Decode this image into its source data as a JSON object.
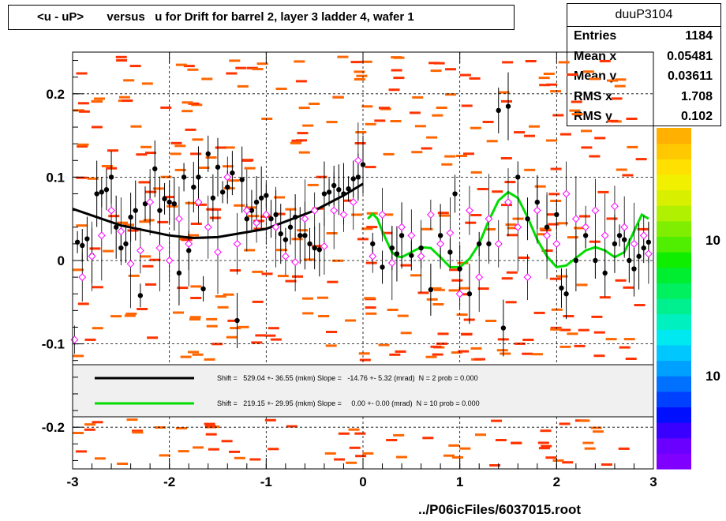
{
  "title": "<u - uP>       versus   u for Drift for barrel 2, layer 3 ladder 4, wafer 1",
  "footer": "../P06icFiles/6037015.root",
  "stats": {
    "name": "duuP3104",
    "rows": [
      {
        "label": "Entries",
        "value": "1184"
      },
      {
        "label": "Mean x",
        "value": "0.05481"
      },
      {
        "label": "Mean y",
        "value": "0.03611"
      },
      {
        "label": "RMS x",
        "value": "1.708"
      },
      {
        "label": "RMS y",
        "value": "0.102"
      }
    ]
  },
  "fit_legend": [
    {
      "text": "Shift =   529.04 +- 36.55 (mkm) Slope =   -14.76 +- 5.32 (mrad)  N = 2 prob = 0.000",
      "color": "#000000"
    },
    {
      "text": "Shift =   219.15 +- 29.95 (mkm) Slope =     0.00 +- 0.00 (mrad)  N = 10 prob = 0.000",
      "color": "#00dd00"
    }
  ],
  "chart_data": {
    "type": "scatter",
    "xlim": [
      -3,
      3
    ],
    "ylim": [
      -0.25,
      0.25
    ],
    "x_ticks": [
      "-3",
      "-2",
      "-1",
      "0",
      "1",
      "2",
      "3"
    ],
    "y_ticks": [
      "0.2",
      "0.1",
      "0",
      "-0.1",
      "-0.2"
    ],
    "color_scale_labels": [
      "10",
      "10"
    ],
    "grid": true,
    "profile_black": [
      [
        -2.95,
        0.022
      ],
      [
        -2.9,
        0.018
      ],
      [
        -2.85,
        0.026
      ],
      [
        -2.8,
        0.006
      ],
      [
        -2.75,
        0.08
      ],
      [
        -2.7,
        0.082
      ],
      [
        -2.65,
        0.085
      ],
      [
        -2.6,
        0.1
      ],
      [
        -2.55,
        0.04
      ],
      [
        -2.5,
        0.015
      ],
      [
        -2.45,
        0.02
      ],
      [
        -2.4,
        0.052
      ],
      [
        -2.35,
        0.06
      ],
      [
        -2.3,
        -0.042
      ],
      [
        -2.25,
        0.068
      ],
      [
        -2.2,
        0.07
      ],
      [
        -2.15,
        0.11
      ],
      [
        -2.1,
        0.06
      ],
      [
        -2.05,
        0.074
      ],
      [
        -2.0,
        0.07
      ],
      [
        -1.95,
        0.068
      ],
      [
        -1.9,
        -0.015
      ],
      [
        -1.85,
        0.1
      ],
      [
        -1.8,
        0.012
      ],
      [
        -1.75,
        0.088
      ],
      [
        -1.7,
        0.1
      ],
      [
        -1.65,
        -0.034
      ],
      [
        -1.6,
        0.128
      ],
      [
        -1.55,
        0.075
      ],
      [
        -1.5,
        0.112
      ],
      [
        -1.45,
        0.082
      ],
      [
        -1.4,
        0.088
      ],
      [
        -1.35,
        0.105
      ],
      [
        -1.3,
        -0.072
      ],
      [
        -1.25,
        0.097
      ],
      [
        -1.2,
        0.05
      ],
      [
        -1.15,
        0.06
      ],
      [
        -1.1,
        0.07
      ],
      [
        -1.05,
        0.075
      ],
      [
        -1.0,
        0.078
      ],
      [
        -0.95,
        0.05
      ],
      [
        -0.9,
        0.055
      ],
      [
        -0.85,
        0.032
      ],
      [
        -0.8,
        0.025
      ],
      [
        -0.75,
        0.04
      ],
      [
        -0.7,
        0.052
      ],
      [
        -0.65,
        0.03
      ],
      [
        -0.6,
        0.03
      ],
      [
        -0.55,
        0.02
      ],
      [
        -0.5,
        0.015
      ],
      [
        -0.45,
        0.013
      ],
      [
        -0.4,
        0.08
      ],
      [
        -0.35,
        0.082
      ],
      [
        -0.3,
        0.09
      ],
      [
        -0.25,
        0.085
      ],
      [
        -0.2,
        0.08
      ],
      [
        -0.15,
        0.086
      ],
      [
        -0.1,
        0.098
      ],
      [
        -0.05,
        0.1
      ],
      [
        0.0,
        0.115
      ],
      [
        0.1,
        0.02
      ],
      [
        0.2,
        -0.008
      ],
      [
        0.3,
        0.015
      ],
      [
        0.35,
        0.008
      ],
      [
        0.4,
        0.03
      ],
      [
        0.5,
        0.006
      ],
      [
        0.6,
        0.015
      ],
      [
        0.7,
        -0.035
      ],
      [
        0.8,
        0.03
      ],
      [
        0.9,
        0.01
      ],
      [
        0.95,
        0.08
      ],
      [
        1.0,
        -0.01
      ],
      [
        1.1,
        -0.04
      ],
      [
        1.2,
        0.02
      ],
      [
        1.3,
        0.02
      ],
      [
        1.4,
        0.18
      ],
      [
        1.45,
        -0.081
      ],
      [
        1.5,
        0.185
      ],
      [
        1.6,
        0.1
      ],
      [
        1.7,
        0.05
      ],
      [
        1.8,
        0.07
      ],
      [
        1.9,
        0.04
      ],
      [
        2.0,
        0.055
      ],
      [
        2.05,
        -0.033
      ],
      [
        2.1,
        -0.04
      ],
      [
        2.2,
        0.0
      ],
      [
        2.3,
        0.03
      ],
      [
        2.4,
        0.0
      ],
      [
        2.5,
        -0.015
      ],
      [
        2.6,
        0.02
      ],
      [
        2.65,
        0.03
      ],
      [
        2.7,
        0.025
      ],
      [
        2.75,
        0.0
      ],
      [
        2.8,
        -0.01
      ],
      [
        2.85,
        0.005
      ],
      [
        2.9,
        0.015
      ],
      [
        2.95,
        0.022
      ]
    ],
    "profile_magenta": [
      [
        -2.98,
        -0.095
      ],
      [
        -2.9,
        -0.02
      ],
      [
        -2.8,
        0.005
      ],
      [
        -2.7,
        0.03
      ],
      [
        -2.6,
        0.06
      ],
      [
        -2.5,
        0.035
      ],
      [
        -2.4,
        -0.004
      ],
      [
        -2.3,
        0.012
      ],
      [
        -2.2,
        0.07
      ],
      [
        -2.1,
        0.015
      ],
      [
        -2.0,
        0.0
      ],
      [
        -1.9,
        0.05
      ],
      [
        -1.8,
        0.02
      ],
      [
        -1.7,
        0.07
      ],
      [
        -1.6,
        0.04
      ],
      [
        -1.5,
        0.01
      ],
      [
        -1.4,
        0.1
      ],
      [
        -1.3,
        0.02
      ],
      [
        -1.2,
        0.06
      ],
      [
        -1.1,
        0.045
      ],
      [
        -1.0,
        0.055
      ],
      [
        -0.9,
        0.04
      ],
      [
        -0.8,
        0.005
      ],
      [
        -0.7,
        -0.002
      ],
      [
        -0.6,
        0.05
      ],
      [
        -0.5,
        0.06
      ],
      [
        -0.4,
        0.017
      ],
      [
        -0.3,
        0.06
      ],
      [
        -0.2,
        0.055
      ],
      [
        -0.1,
        0.07
      ],
      [
        -0.05,
        0.12
      ],
      [
        0.1,
        0.005
      ],
      [
        0.2,
        0.055
      ],
      [
        0.3,
        -0.003
      ],
      [
        0.4,
        0.04
      ],
      [
        0.5,
        0.03
      ],
      [
        0.6,
        0.005
      ],
      [
        0.7,
        0.055
      ],
      [
        0.8,
        0.02
      ],
      [
        0.9,
        0.033
      ],
      [
        1.0,
        -0.04
      ],
      [
        1.1,
        0.06
      ],
      [
        1.2,
        -0.02
      ],
      [
        1.3,
        0.05
      ],
      [
        1.4,
        0.02
      ],
      [
        1.5,
        0.07
      ],
      [
        1.6,
        0.04
      ],
      [
        1.7,
        -0.02
      ],
      [
        1.8,
        0.06
      ],
      [
        1.9,
        0.03
      ],
      [
        2.0,
        0.02
      ],
      [
        2.1,
        0.08
      ],
      [
        2.2,
        0.05
      ],
      [
        2.3,
        0.04
      ],
      [
        2.4,
        0.06
      ],
      [
        2.5,
        0.03
      ],
      [
        2.6,
        0.065
      ],
      [
        2.7,
        0.04
      ],
      [
        2.8,
        0.02
      ],
      [
        2.9,
        0.03
      ],
      [
        2.95,
        0.008
      ]
    ],
    "fit_black": [
      [
        -3.0,
        0.062
      ],
      [
        -2.5,
        0.042
      ],
      [
        -2.0,
        0.03
      ],
      [
        -1.75,
        0.027
      ],
      [
        -1.5,
        0.028
      ],
      [
        -1.0,
        0.038
      ],
      [
        -0.5,
        0.06
      ],
      [
        -0.2,
        0.078
      ],
      [
        0.0,
        0.092
      ]
    ],
    "fit_green": [
      [
        0.05,
        0.05
      ],
      [
        0.1,
        0.056
      ],
      [
        0.15,
        0.05
      ],
      [
        0.2,
        0.035
      ],
      [
        0.25,
        0.022
      ],
      [
        0.3,
        0.01
      ],
      [
        0.35,
        0.005
      ],
      [
        0.4,
        0.004
      ],
      [
        0.5,
        0.01
      ],
      [
        0.6,
        0.016
      ],
      [
        0.7,
        0.015
      ],
      [
        0.8,
        0.004
      ],
      [
        0.9,
        -0.008
      ],
      [
        1.0,
        -0.008
      ],
      [
        1.1,
        0.002
      ],
      [
        1.2,
        0.02
      ],
      [
        1.3,
        0.048
      ],
      [
        1.4,
        0.072
      ],
      [
        1.5,
        0.082
      ],
      [
        1.6,
        0.075
      ],
      [
        1.7,
        0.052
      ],
      [
        1.8,
        0.025
      ],
      [
        1.9,
        0.005
      ],
      [
        2.0,
        -0.008
      ],
      [
        2.1,
        -0.006
      ],
      [
        2.2,
        0.003
      ],
      [
        2.3,
        0.012
      ],
      [
        2.4,
        0.016
      ],
      [
        2.5,
        0.012
      ],
      [
        2.6,
        0.004
      ],
      [
        2.7,
        0.01
      ],
      [
        2.8,
        0.035
      ],
      [
        2.88,
        0.055
      ],
      [
        2.95,
        0.05
      ]
    ]
  }
}
